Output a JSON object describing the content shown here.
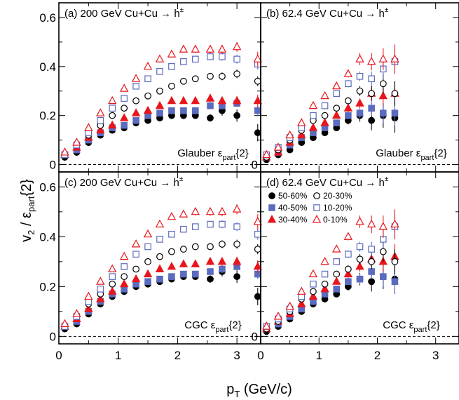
{
  "chart_data": {
    "type": "scatter",
    "xlabel": "p_T (GeV/c)",
    "xlabel_main": "p",
    "xlabel_sub": "T",
    "xlabel_unit": " (GeV/c)",
    "ylabel": "v_2 / ε_part{2}",
    "ylabel_v": "v",
    "ylabel_v_sub": "2",
    "ylabel_mid": " / ε",
    "ylabel_eps_sub": "part",
    "ylabel_tail": "{2}",
    "xlim": [
      0,
      3.4
    ],
    "ylim": [
      -0.03,
      0.66
    ],
    "x_ticks": [
      "0",
      "1",
      "2",
      "3"
    ],
    "y_ticks": [
      "0",
      "0.2",
      "0.4",
      "0.6"
    ],
    "x_values": [
      0.1,
      0.3,
      0.5,
      0.7,
      0.9,
      1.1,
      1.3,
      1.5,
      1.7,
      1.9,
      2.1,
      2.3,
      2.55,
      2.75,
      3.0,
      3.35
    ],
    "legend": {
      "placement": "right",
      "entries": [
        {
          "label": "50-60%",
          "marker": "circle-filled",
          "color": "#000000"
        },
        {
          "label": "20-30%",
          "marker": "circle-open",
          "color": "#000000"
        },
        {
          "label": "40-50%",
          "marker": "square-filled",
          "color": "#5b6bbf"
        },
        {
          "label": "10-20%",
          "marker": "square-open",
          "color": "#5b6bbf"
        },
        {
          "label": "30-40%",
          "marker": "triangle-filled",
          "color": "#e8161c"
        },
        {
          "label": "0-10%",
          "marker": "triangle-open",
          "color": "#e8161c"
        }
      ]
    },
    "panels": [
      {
        "id": "a",
        "title_main": "(a) 200 GeV Cu+Cu → h",
        "title_sup": "±",
        "model_main": "Glauber ε",
        "model_sub": "part",
        "model_tail": "{2}",
        "series": [
          {
            "name": "50-60%",
            "y": [
              0.03,
              0.05,
              0.09,
              0.12,
              0.14,
              0.15,
              0.17,
              0.18,
              0.19,
              0.2,
              0.2,
              0.2,
              0.19,
              0.22,
              0.2,
              0.13
            ],
            "err": [
              0.005,
              0.005,
              0.005,
              0.005,
              0.005,
              0.005,
              0.005,
              0.005,
              0.008,
              0.008,
              0.01,
              0.012,
              0.015,
              0.02,
              0.025,
              0.035
            ]
          },
          {
            "name": "40-50%",
            "y": [
              0.04,
              0.06,
              0.1,
              0.13,
              0.15,
              0.16,
              0.18,
              0.2,
              0.21,
              0.22,
              0.22,
              0.22,
              0.24,
              0.24,
              0.25,
              0.22
            ],
            "err": [
              0.005,
              0.005,
              0.005,
              0.005,
              0.005,
              0.005,
              0.005,
              0.005,
              0.006,
              0.007,
              0.008,
              0.01,
              0.012,
              0.015,
              0.015,
              0.02
            ]
          },
          {
            "name": "30-40%",
            "y": [
              0.04,
              0.07,
              0.11,
              0.14,
              0.16,
              0.19,
              0.21,
              0.22,
              0.24,
              0.26,
              0.26,
              0.26,
              0.27,
              0.26,
              0.26,
              0.26
            ],
            "err": [
              0.005,
              0.005,
              0.005,
              0.005,
              0.005,
              0.005,
              0.005,
              0.006,
              0.007,
              0.008,
              0.01,
              0.012,
              0.015,
              0.018,
              0.02,
              0.025
            ]
          },
          {
            "name": "20-30%",
            "y": [
              0.04,
              0.08,
              0.12,
              0.16,
              0.2,
              0.23,
              0.26,
              0.28,
              0.3,
              0.32,
              0.34,
              0.35,
              0.36,
              0.36,
              0.37,
              0.34
            ],
            "err": [
              0.005,
              0.005,
              0.005,
              0.005,
              0.005,
              0.005,
              0.006,
              0.007,
              0.008,
              0.009,
              0.01,
              0.012,
              0.014,
              0.016,
              0.018,
              0.02
            ]
          },
          {
            "name": "10-20%",
            "y": [
              0.04,
              0.08,
              0.13,
              0.18,
              0.23,
              0.27,
              0.32,
              0.35,
              0.38,
              0.4,
              0.42,
              0.43,
              0.44,
              0.44,
              0.43,
              0.41
            ],
            "err": [
              0.005,
              0.005,
              0.005,
              0.005,
              0.005,
              0.005,
              0.006,
              0.007,
              0.008,
              0.009,
              0.01,
              0.012,
              0.014,
              0.016,
              0.018,
              0.022
            ]
          },
          {
            "name": "0-10%",
            "y": [
              0.05,
              0.09,
              0.15,
              0.21,
              0.26,
              0.31,
              0.35,
              0.4,
              0.43,
              0.45,
              0.47,
              0.47,
              0.47,
              0.47,
              0.48,
              0.43
            ],
            "err": [
              0.005,
              0.005,
              0.005,
              0.005,
              0.005,
              0.006,
              0.007,
              0.008,
              0.009,
              0.01,
              0.012,
              0.014,
              0.016,
              0.018,
              0.02,
              0.03
            ]
          }
        ]
      },
      {
        "id": "b",
        "title_main": "(b) 62.4 GeV Cu+Cu → h",
        "title_sup": "±",
        "model_main": "Glauber ε",
        "model_sub": "part",
        "model_tail": "{2}",
        "series": [
          {
            "name": "50-60%",
            "y": [
              0.02,
              0.04,
              0.06,
              0.09,
              0.11,
              0.13,
              0.15,
              0.18,
              0.2,
              0.18,
              0.2,
              0.19
            ],
            "err": [
              0.005,
              0.005,
              0.006,
              0.007,
              0.008,
              0.01,
              0.012,
              0.016,
              0.025,
              0.04,
              0.05,
              0.06
            ]
          },
          {
            "name": "40-50%",
            "y": [
              0.03,
              0.05,
              0.08,
              0.11,
              0.13,
              0.15,
              0.17,
              0.2,
              0.21,
              0.23,
              0.21,
              0.21
            ],
            "err": [
              0.005,
              0.005,
              0.006,
              0.007,
              0.008,
              0.01,
              0.012,
              0.015,
              0.02,
              0.03,
              0.04,
              0.05
            ]
          },
          {
            "name": "30-40%",
            "y": [
              0.03,
              0.05,
              0.09,
              0.12,
              0.15,
              0.17,
              0.2,
              0.23,
              0.25,
              0.29,
              0.28,
              0.29
            ],
            "err": [
              0.005,
              0.005,
              0.006,
              0.007,
              0.008,
              0.01,
              0.012,
              0.015,
              0.02,
              0.03,
              0.04,
              0.05
            ]
          },
          {
            "name": "20-30%",
            "y": [
              0.03,
              0.06,
              0.1,
              0.14,
              0.18,
              0.2,
              0.23,
              0.26,
              0.3,
              0.29,
              0.33,
              0.29
            ],
            "err": [
              0.005,
              0.005,
              0.006,
              0.007,
              0.008,
              0.01,
              0.012,
              0.015,
              0.02,
              0.03,
              0.04,
              0.05
            ]
          },
          {
            "name": "10-20%",
            "y": [
              0.04,
              0.07,
              0.11,
              0.15,
              0.2,
              0.24,
              0.29,
              0.33,
              0.36,
              0.35,
              0.39,
              0.42
            ],
            "err": [
              0.005,
              0.005,
              0.006,
              0.007,
              0.008,
              0.01,
              0.012,
              0.015,
              0.02,
              0.03,
              0.04,
              0.05
            ]
          },
          {
            "name": "0-10%",
            "y": [
              0.04,
              0.07,
              0.12,
              0.17,
              0.24,
              0.28,
              0.32,
              0.37,
              0.43,
              0.42,
              0.43,
              0.43
            ],
            "err": [
              0.005,
              0.005,
              0.006,
              0.007,
              0.008,
              0.01,
              0.012,
              0.015,
              0.025,
              0.035,
              0.045,
              0.06
            ]
          }
        ]
      },
      {
        "id": "c",
        "title_main": "(c) 200 GeV Cu+Cu → h",
        "title_sup": "±",
        "model_main": "CGC ε",
        "model_sub": "part",
        "model_tail": "{2}",
        "series": [
          {
            "name": "50-60%",
            "y": [
              0.03,
              0.05,
              0.09,
              0.13,
              0.16,
              0.18,
              0.2,
              0.21,
              0.22,
              0.23,
              0.24,
              0.24,
              0.23,
              0.26,
              0.24,
              0.16
            ],
            "err": [
              0.005,
              0.005,
              0.005,
              0.005,
              0.005,
              0.005,
              0.005,
              0.005,
              0.008,
              0.008,
              0.01,
              0.012,
              0.015,
              0.02,
              0.025,
              0.035
            ]
          },
          {
            "name": "40-50%",
            "y": [
              0.04,
              0.06,
              0.1,
              0.14,
              0.17,
              0.19,
              0.21,
              0.22,
              0.23,
              0.24,
              0.25,
              0.25,
              0.26,
              0.27,
              0.28,
              0.25
            ],
            "err": [
              0.005,
              0.005,
              0.005,
              0.005,
              0.005,
              0.005,
              0.005,
              0.005,
              0.006,
              0.007,
              0.008,
              0.01,
              0.012,
              0.015,
              0.015,
              0.02
            ]
          },
          {
            "name": "30-40%",
            "y": [
              0.04,
              0.07,
              0.11,
              0.15,
              0.18,
              0.21,
              0.23,
              0.25,
              0.27,
              0.28,
              0.29,
              0.29,
              0.3,
              0.3,
              0.3,
              0.28
            ],
            "err": [
              0.005,
              0.005,
              0.005,
              0.005,
              0.005,
              0.005,
              0.005,
              0.006,
              0.007,
              0.008,
              0.01,
              0.012,
              0.015,
              0.018,
              0.02,
              0.025
            ]
          },
          {
            "name": "20-30%",
            "y": [
              0.04,
              0.08,
              0.13,
              0.17,
              0.21,
              0.24,
              0.27,
              0.3,
              0.32,
              0.34,
              0.35,
              0.36,
              0.36,
              0.37,
              0.37,
              0.35
            ],
            "err": [
              0.005,
              0.005,
              0.005,
              0.005,
              0.005,
              0.005,
              0.006,
              0.007,
              0.008,
              0.009,
              0.01,
              0.012,
              0.014,
              0.016,
              0.018,
              0.02
            ]
          },
          {
            "name": "10-20%",
            "y": [
              0.04,
              0.08,
              0.14,
              0.19,
              0.24,
              0.28,
              0.33,
              0.36,
              0.39,
              0.41,
              0.43,
              0.44,
              0.45,
              0.45,
              0.44,
              0.41
            ],
            "err": [
              0.005,
              0.005,
              0.005,
              0.005,
              0.005,
              0.005,
              0.006,
              0.007,
              0.008,
              0.009,
              0.01,
              0.012,
              0.014,
              0.016,
              0.018,
              0.022
            ]
          },
          {
            "name": "0-10%",
            "y": [
              0.05,
              0.09,
              0.16,
              0.22,
              0.27,
              0.32,
              0.37,
              0.41,
              0.45,
              0.48,
              0.49,
              0.5,
              0.5,
              0.5,
              0.51,
              0.46
            ],
            "err": [
              0.005,
              0.005,
              0.005,
              0.005,
              0.005,
              0.006,
              0.007,
              0.008,
              0.009,
              0.01,
              0.012,
              0.014,
              0.016,
              0.018,
              0.02,
              0.03
            ]
          }
        ]
      },
      {
        "id": "d",
        "title_main": "(d) 62.4 GeV Cu+Cu → h",
        "title_sup": "±",
        "model_main": "CGC ε",
        "model_sub": "part",
        "model_tail": "{2}",
        "series": [
          {
            "name": "50-60%",
            "y": [
              0.02,
              0.04,
              0.07,
              0.1,
              0.13,
              0.15,
              0.17,
              0.2,
              0.23,
              0.22,
              0.24,
              0.23
            ],
            "err": [
              0.005,
              0.005,
              0.006,
              0.007,
              0.008,
              0.01,
              0.012,
              0.016,
              0.025,
              0.04,
              0.05,
              0.06
            ]
          },
          {
            "name": "40-50%",
            "y": [
              0.03,
              0.05,
              0.08,
              0.11,
              0.14,
              0.17,
              0.19,
              0.22,
              0.23,
              0.26,
              0.24,
              0.22
            ],
            "err": [
              0.005,
              0.005,
              0.006,
              0.007,
              0.008,
              0.01,
              0.012,
              0.015,
              0.02,
              0.03,
              0.04,
              0.05
            ]
          },
          {
            "name": "30-40%",
            "y": [
              0.03,
              0.06,
              0.09,
              0.13,
              0.16,
              0.19,
              0.22,
              0.25,
              0.28,
              0.31,
              0.3,
              0.32
            ],
            "err": [
              0.005,
              0.005,
              0.006,
              0.007,
              0.008,
              0.01,
              0.012,
              0.015,
              0.02,
              0.03,
              0.04,
              0.05
            ]
          },
          {
            "name": "20-30%",
            "y": [
              0.03,
              0.06,
              0.1,
              0.15,
              0.18,
              0.21,
              0.25,
              0.27,
              0.31,
              0.3,
              0.34,
              0.3
            ],
            "err": [
              0.005,
              0.005,
              0.006,
              0.007,
              0.008,
              0.01,
              0.012,
              0.015,
              0.02,
              0.03,
              0.04,
              0.05
            ]
          },
          {
            "name": "10-20%",
            "y": [
              0.04,
              0.07,
              0.11,
              0.16,
              0.21,
              0.25,
              0.3,
              0.33,
              0.36,
              0.35,
              0.39,
              0.44
            ],
            "err": [
              0.005,
              0.005,
              0.006,
              0.007,
              0.008,
              0.01,
              0.012,
              0.015,
              0.02,
              0.03,
              0.04,
              0.05
            ]
          },
          {
            "name": "0-10%",
            "y": [
              0.04,
              0.08,
              0.12,
              0.18,
              0.25,
              0.3,
              0.35,
              0.4,
              0.46,
              0.45,
              0.44,
              0.45
            ],
            "err": [
              0.005,
              0.005,
              0.006,
              0.007,
              0.008,
              0.01,
              0.012,
              0.015,
              0.025,
              0.035,
              0.045,
              0.06
            ]
          }
        ]
      }
    ]
  }
}
